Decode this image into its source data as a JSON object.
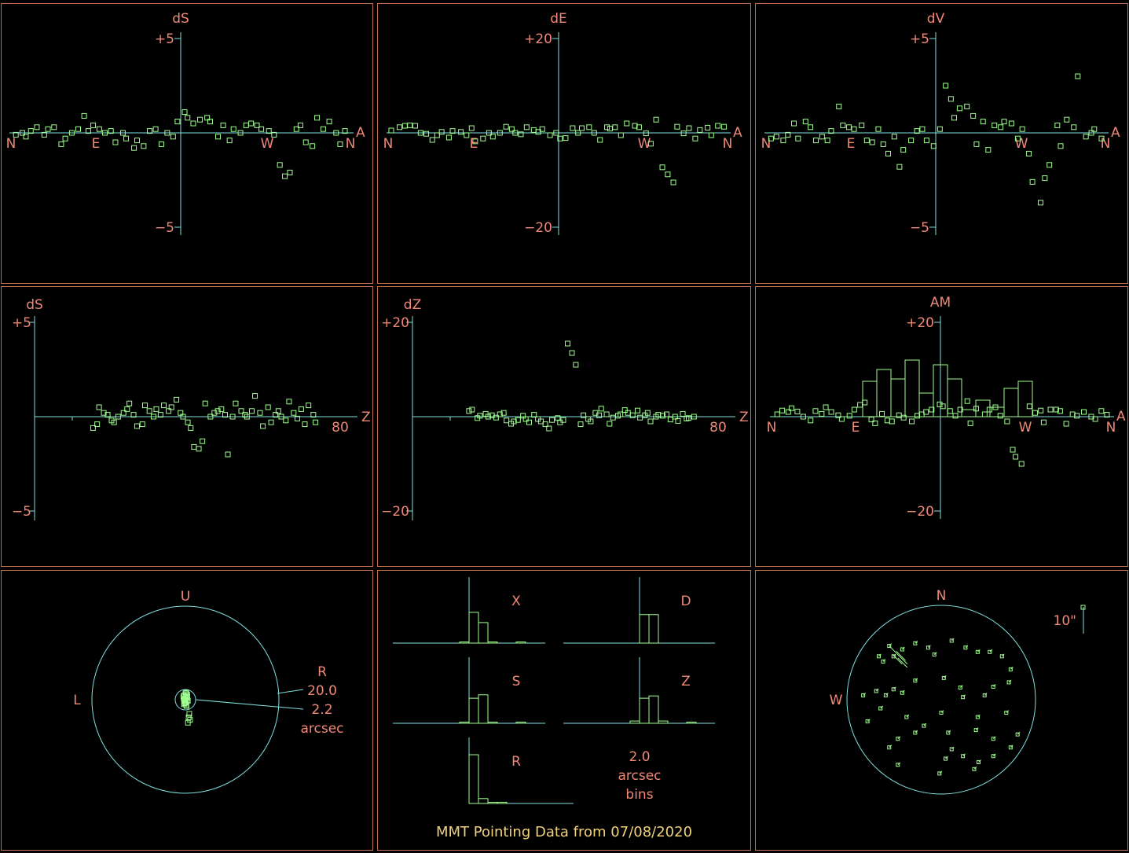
{
  "colors": {
    "background": "#000000",
    "frame": "#c0704c",
    "axis": "#80e0e0",
    "label": "#f08878",
    "point": "#a0ff90",
    "caption": "#f0d27a"
  },
  "caption": "MMT Pointing Data from 07/08/2020",
  "chart_data": [
    {
      "id": "dS-azimuth",
      "type": "scatter",
      "title": "dS",
      "ylim": [
        -5,
        5
      ],
      "ytick_labels": [
        "+5",
        "−5"
      ],
      "xtick_labels": [
        "N",
        "E",
        "W",
        "N",
        "A"
      ],
      "y": [
        -0.1,
        0.0,
        -0.2,
        0.1,
        0.3,
        -0.1,
        0.2,
        0.3,
        -0.6,
        -0.3,
        0.0,
        0.2,
        0.9,
        0.1,
        0.4,
        0.2,
        0.0,
        0.1,
        -0.5,
        0.0,
        -0.3,
        -0.8,
        -0.4,
        -0.7,
        0.1,
        0.2,
        -0.6,
        0.0,
        -0.2,
        0.6,
        1.1,
        0.8,
        0.5,
        0.7,
        0.8,
        0.6,
        -0.2,
        0.4,
        -0.4,
        0.2,
        0.0,
        0.4,
        0.5,
        0.4,
        0.2,
        0.1,
        -0.1,
        -1.7,
        -2.3,
        -2.1,
        0.2,
        0.4,
        -0.5,
        -0.7,
        0.8,
        0.2,
        0.6,
        0.0,
        -0.6,
        0.1
      ]
    },
    {
      "id": "dE-azimuth",
      "type": "scatter",
      "title": "dE",
      "ylim": [
        -20,
        20
      ],
      "ytick_labels": [
        "+20",
        "−20"
      ],
      "xtick_labels": [
        "N",
        "E",
        "W",
        "N",
        "A"
      ],
      "y": [
        0.5,
        1.2,
        1.5,
        1.6,
        1.5,
        0.0,
        -0.2,
        -1.5,
        -0.5,
        0.2,
        -1.0,
        0.4,
        0.2,
        -0.5,
        1.0,
        -1.8,
        -1.2,
        0.0,
        -0.8,
        0.0,
        1.3,
        0.8,
        0.0,
        -0.3,
        1.2,
        0.6,
        0.2,
        0.8,
        -0.5,
        0.0,
        -1.2,
        -1.1,
        1.0,
        0.0,
        1.0,
        1.2,
        0.0,
        -1.5,
        1.2,
        0.9,
        1.2,
        -0.5,
        2.0,
        1.5,
        1.2,
        -0.1,
        -2.3,
        2.8,
        -7.3,
        -8.8,
        -10.5,
        1.3,
        -0.1,
        1.0,
        -1.2,
        0.6,
        1.1,
        -0.5,
        1.5,
        1.3
      ]
    },
    {
      "id": "dV-azimuth",
      "type": "scatter",
      "title": "dV",
      "ylim": [
        -5,
        5
      ],
      "ytick_labels": [
        "+5",
        "−5"
      ],
      "xtick_labels": [
        "N",
        "E",
        "W",
        "N",
        "A"
      ],
      "y": [
        -0.3,
        -0.2,
        -0.4,
        -0.1,
        0.5,
        -0.3,
        0.6,
        0.3,
        -0.4,
        -0.2,
        -0.4,
        0.1,
        1.4,
        0.4,
        0.3,
        0.2,
        0.4,
        -0.4,
        -0.5,
        0.2,
        -0.6,
        -1.1,
        -0.2,
        -1.8,
        -0.9,
        -0.4,
        0.1,
        0.2,
        -0.4,
        -0.7,
        0.2,
        2.5,
        1.8,
        0.8,
        1.3,
        1.4,
        0.9,
        -0.6,
        0.6,
        -0.9,
        0.4,
        0.3,
        0.6,
        0.5,
        -0.3,
        0.2,
        -1.1,
        -2.6,
        -3.7,
        -2.4,
        -1.7,
        0.4,
        -0.7,
        0.7,
        0.3,
        3.0,
        -0.2,
        0.0,
        0.2,
        -0.3
      ]
    },
    {
      "id": "dS-elevation",
      "type": "scatter",
      "title": "dS",
      "ylim": [
        -5,
        5
      ],
      "ytick_labels": [
        "+5",
        "−5"
      ],
      "xtick_labels": [
        "80",
        "Z"
      ],
      "y": [
        -0.6,
        -0.4,
        0.5,
        0.2,
        0.1,
        -0.2,
        -0.3,
        0.0,
        0.2,
        0.4,
        0.7,
        0.1,
        -0.5,
        -0.4,
        0.6,
        0.3,
        0.0,
        0.4,
        0.1,
        0.6,
        0.3,
        0.5,
        0.9,
        0.2,
        0.0,
        -0.3,
        -0.6,
        -1.6,
        -1.7,
        -1.3,
        0.7,
        0.0,
        0.2,
        0.3,
        0.4,
        0.1,
        -2.0,
        0.0,
        0.7,
        0.3,
        0.1,
        0.0,
        0.3,
        1.1,
        0.2,
        -0.5,
        0.5,
        -0.3,
        0.1,
        0.3,
        0.0,
        -0.2,
        0.8,
        0.2,
        -0.1,
        0.4,
        -0.4,
        0.6,
        0.1,
        -0.3
      ]
    },
    {
      "id": "dZ-elevation",
      "type": "scatter",
      "title": "dZ",
      "ylim": [
        -20,
        20
      ],
      "ytick_labels": [
        "+20",
        "−20"
      ],
      "xtick_labels": [
        "80",
        "Z"
      ],
      "y": [
        1.2,
        1.5,
        -0.3,
        0.2,
        0.6,
        0.0,
        0.3,
        -0.2,
        0.5,
        0.8,
        -0.8,
        -1.5,
        -1.0,
        -0.7,
        0.2,
        -0.5,
        -1.2,
        0.4,
        -0.5,
        -1.0,
        -1.6,
        -2.5,
        -0.7,
        -0.3,
        -1.2,
        -0.7,
        15.5,
        13.5,
        11.0,
        -1.6,
        0.3,
        -0.5,
        -1.0,
        0.8,
        0.3,
        1.7,
        0.5,
        -1.5,
        -0.2,
        0.2,
        0.5,
        1.4,
        0.8,
        0.3,
        1.3,
        -0.2,
        0.3,
        0.8,
        -1.0,
        0.0,
        0.4,
        0.2,
        0.5,
        -0.6,
        0.0,
        -0.9,
        0.6,
        -0.4,
        -0.3,
        0.0
      ]
    },
    {
      "id": "AM-azimuth",
      "type": "scatter",
      "title": "AM",
      "ylim": [
        -20,
        20
      ],
      "ytick_labels": [
        "+20",
        "−20"
      ],
      "xtick_labels": [
        "N",
        "E",
        "W",
        "N",
        "A"
      ],
      "y": [
        0.5,
        1.3,
        1.0,
        1.8,
        1.1,
        0.0,
        -0.8,
        1.2,
        0.6,
        2.0,
        1.0,
        0.3,
        -0.5,
        0.2,
        1.5,
        2.5,
        3.0,
        -0.6,
        -1.4,
        0.6,
        -0.8,
        -1.0,
        0.3,
        -0.2,
        -1.0,
        0.2,
        0.5,
        1.0,
        1.5,
        2.6,
        2.2,
        1.2,
        0.2,
        1.5,
        3.3,
        -1.4,
        1.7,
        0.5,
        1.5,
        2.0,
        0.2,
        -1.0,
        -7.0,
        -8.5,
        -10.0,
        2.2,
        0.8,
        1.3,
        -1.2,
        1.5,
        1.5,
        1.2,
        -1.5,
        0.5,
        0.2,
        1.0,
        0.0,
        -0.5,
        1.2,
        0.4
      ],
      "histogram": [
        15,
        20,
        16,
        24,
        10,
        22,
        16,
        3,
        7,
        4,
        12,
        15
      ]
    },
    {
      "id": "residual-circle",
      "type": "scatter",
      "tick_labels": [
        "U",
        "L",
        "R"
      ],
      "outer_radius": "20.0",
      "inner_radius": "2.2",
      "unit": "arcsec",
      "points": [
        [
          0.0,
          -0.5
        ],
        [
          0.3,
          0.8
        ],
        [
          -0.4,
          1.2
        ],
        [
          0.6,
          0.0
        ],
        [
          -0.2,
          -1.0
        ],
        [
          0.5,
          1.5
        ],
        [
          -0.5,
          0.3
        ],
        [
          0.2,
          -1.4
        ],
        [
          0.0,
          1.8
        ],
        [
          -0.3,
          -0.2
        ],
        [
          0.4,
          0.5
        ],
        [
          0.1,
          -0.8
        ],
        [
          -0.6,
          0.9
        ],
        [
          0.7,
          -0.3
        ],
        [
          0.2,
          2.0
        ],
        [
          -0.1,
          0.1
        ],
        [
          0.3,
          -1.8
        ],
        [
          -0.4,
          -1.3
        ],
        [
          0.5,
          1.0
        ],
        [
          0.0,
          0.6
        ],
        [
          1.1,
          -4.0
        ],
        [
          0.9,
          -5.0
        ],
        [
          0.7,
          -6.5
        ],
        [
          1.3,
          -5.7
        ]
      ]
    },
    {
      "id": "histograms",
      "type": "bar",
      "bin_width_label": "2.0",
      "bin_unit": "arcsec",
      "bin_word": "bins",
      "panels": [
        {
          "name": "X",
          "counts": [
            1,
            27,
            18,
            1,
            0,
            0,
            1
          ]
        },
        {
          "name": "D",
          "counts": [
            0,
            25,
            25,
            0,
            0,
            0,
            0
          ]
        },
        {
          "name": "S",
          "counts": [
            1,
            22,
            25,
            1,
            0,
            0,
            1
          ]
        },
        {
          "name": "Z",
          "counts": [
            2,
            22,
            24,
            2,
            0,
            0,
            1
          ]
        },
        {
          "name": "R",
          "counts": [
            40,
            4,
            1,
            1,
            0,
            0,
            0
          ]
        }
      ]
    },
    {
      "id": "sky-map",
      "type": "scatter",
      "tick_labels": [
        "N",
        "W"
      ],
      "scale_label": "10\"",
      "points": [
        [
          -0.6,
          0.62
        ],
        [
          -0.72,
          0.5
        ],
        [
          -0.67,
          0.44
        ],
        [
          -0.55,
          0.5
        ],
        [
          -0.45,
          0.58
        ],
        [
          -0.3,
          0.65
        ],
        [
          -0.15,
          0.6
        ],
        [
          -0.08,
          0.52
        ],
        [
          0.12,
          0.68
        ],
        [
          0.28,
          0.6
        ],
        [
          0.42,
          0.55
        ],
        [
          0.56,
          0.55
        ],
        [
          0.7,
          0.5
        ],
        [
          0.8,
          0.35
        ],
        [
          0.78,
          0.2
        ],
        [
          0.6,
          0.15
        ],
        [
          0.5,
          0.05
        ],
        [
          0.22,
          0.14
        ],
        [
          0.25,
          0.03
        ],
        [
          0.03,
          0.25
        ],
        [
          -0.3,
          0.22
        ],
        [
          -0.55,
          0.12
        ],
        [
          -0.64,
          0.05
        ],
        [
          -0.75,
          0.1
        ],
        [
          -0.9,
          0.05
        ],
        [
          -0.85,
          -0.25
        ],
        [
          -0.7,
          -0.1
        ],
        [
          -0.45,
          0.08
        ],
        [
          -0.4,
          -0.2
        ],
        [
          -0.2,
          -0.3
        ],
        [
          0.0,
          -0.15
        ],
        [
          0.42,
          -0.2
        ],
        [
          0.75,
          -0.15
        ],
        [
          0.88,
          -0.4
        ],
        [
          0.6,
          -0.45
        ],
        [
          0.4,
          -0.35
        ],
        [
          0.08,
          -0.38
        ],
        [
          -0.3,
          -0.38
        ],
        [
          -0.5,
          -0.45
        ],
        [
          -0.6,
          -0.55
        ],
        [
          -0.5,
          -0.75
        ],
        [
          0.05,
          -0.68
        ],
        [
          0.25,
          -0.65
        ],
        [
          0.43,
          -0.72
        ],
        [
          0.6,
          -0.65
        ],
        [
          0.8,
          -0.55
        ],
        [
          -0.02,
          -0.85
        ],
        [
          0.38,
          -0.8
        ],
        [
          0.12,
          -0.57
        ]
      ],
      "vectors": [
        [
          -0.6,
          0.62
        ],
        [
          -0.52,
          0.56
        ],
        [
          -0.5,
          0.48
        ],
        [
          -0.56,
          0.52
        ],
        [
          -0.5,
          0.52
        ]
      ]
    }
  ]
}
